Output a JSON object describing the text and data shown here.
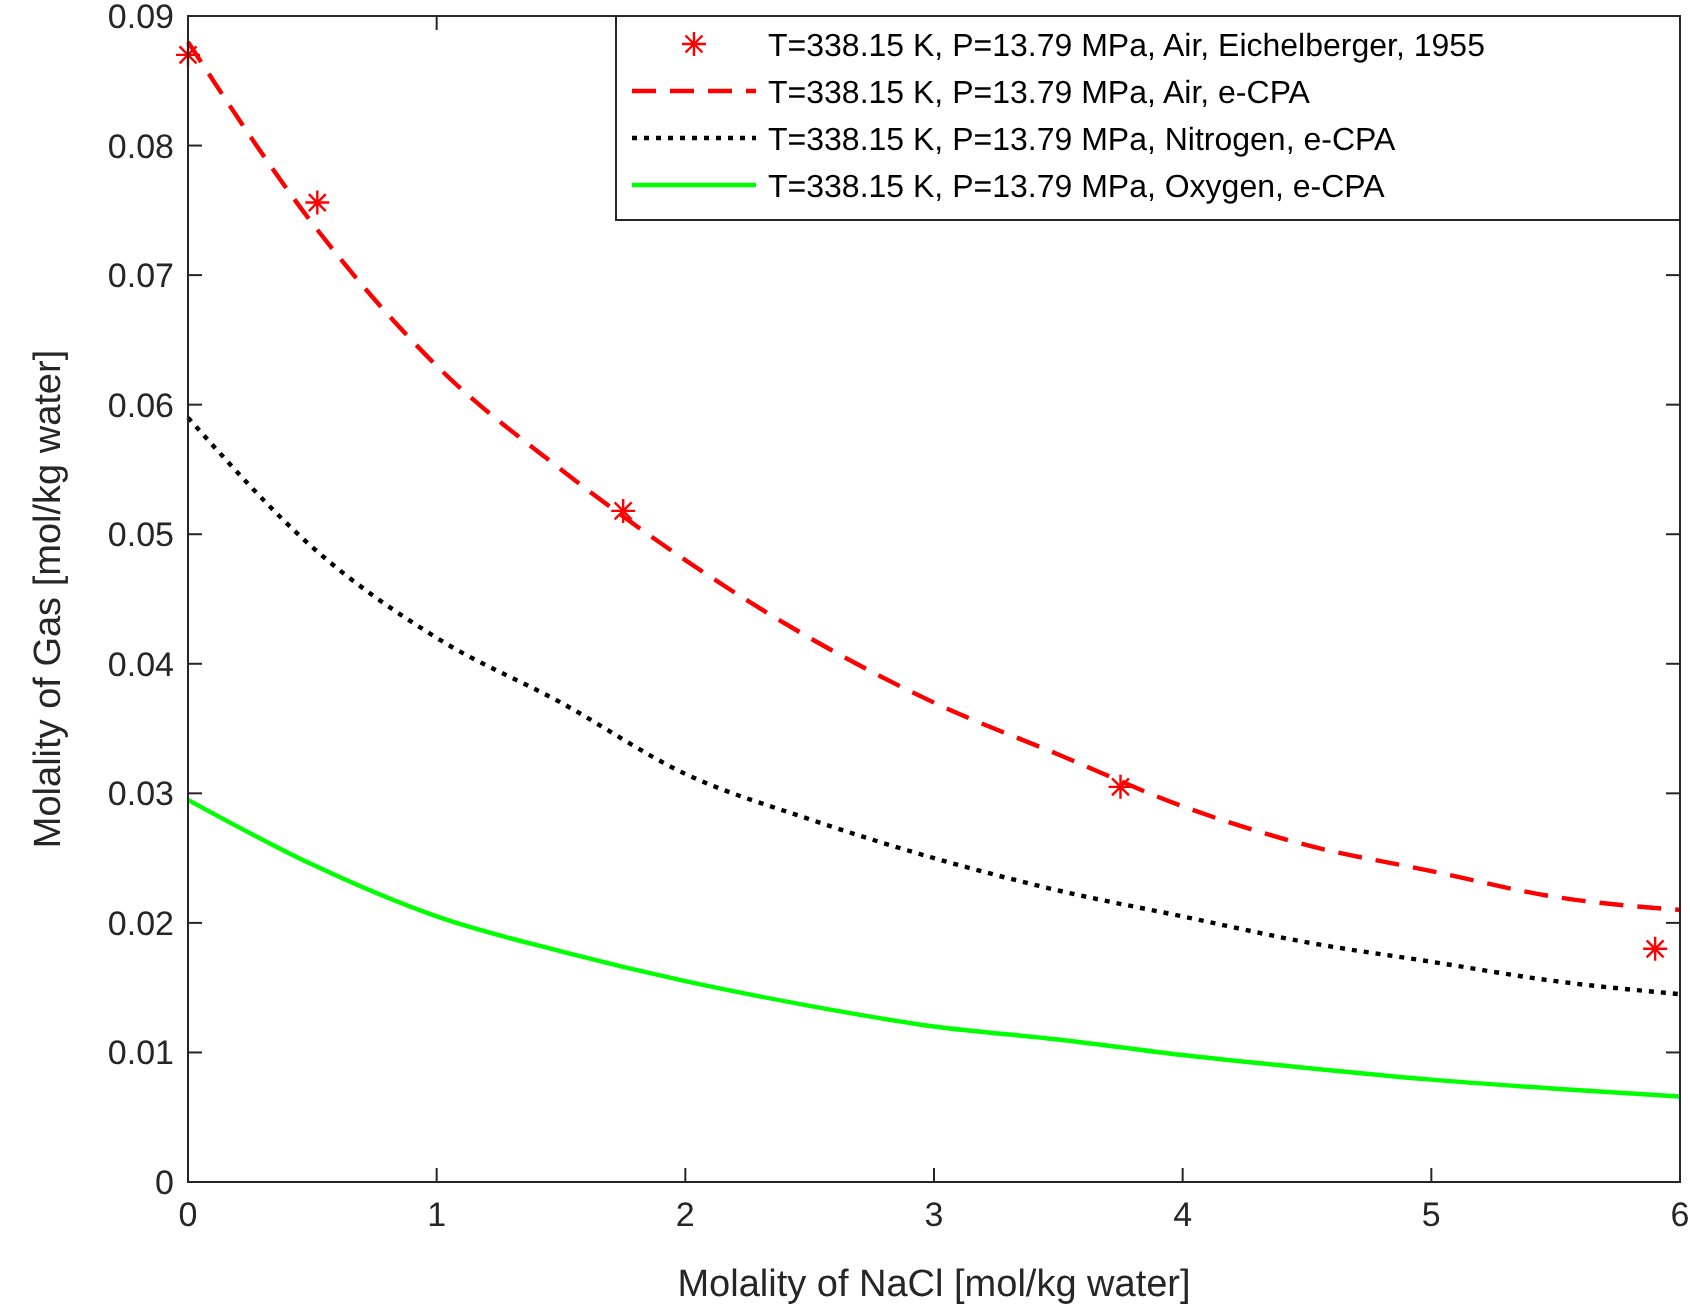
{
  "chart_data": {
    "type": "line",
    "xlabel": "Molality of NaCl [mol/kg water]",
    "ylabel": "Molality of Gas [mol/kg water]",
    "xlim": [
      0,
      6
    ],
    "xticks": [
      0,
      1,
      2,
      3,
      4,
      5,
      6
    ],
    "ylim": [
      0,
      0.09
    ],
    "yticks": [
      0,
      0.01,
      0.02,
      0.03,
      0.04,
      0.05,
      0.06,
      0.07,
      0.08,
      0.09
    ],
    "grid": false,
    "legend": "top right",
    "series": [
      {
        "name": "T=338.15 K, P=13.79 MPa, Air, Eichelberger, 1955",
        "type": "scatter",
        "marker": "cross",
        "color": "#ff0000",
        "x": [
          0,
          0.52,
          1.75,
          3.75,
          5.9
        ],
        "values": [
          0.087,
          0.0756,
          0.0518,
          0.0305,
          0.018
        ]
      },
      {
        "name": "T=338.15 K, P=13.79 MPa, Air, e-CPA",
        "line_style": "dashed",
        "color": "#ff0000",
        "x": [
          0,
          0.5,
          1,
          1.5,
          2,
          2.5,
          3,
          3.5,
          4,
          4.5,
          5,
          5.5,
          6
        ],
        "values": [
          0.088,
          0.074,
          0.063,
          0.055,
          0.048,
          0.042,
          0.037,
          0.033,
          0.029,
          0.026,
          0.024,
          0.022,
          0.021
        ]
      },
      {
        "name": "T=338.15 K, P=13.79 MPa, Nitrogen, e-CPA",
        "line_style": "dotted",
        "color": "#000000",
        "x": [
          0,
          0.5,
          1,
          1.5,
          2,
          2.5,
          3,
          3.5,
          4,
          4.5,
          5,
          5.5,
          6
        ],
        "values": [
          0.059,
          0.049,
          0.042,
          0.037,
          0.0315,
          0.028,
          0.025,
          0.0225,
          0.0205,
          0.0185,
          0.017,
          0.0155,
          0.0145
        ]
      },
      {
        "name": "T=338.15 K, P=13.79 MPa, Oxygen, e-CPA",
        "line_style": "solid",
        "color": "#00ff00",
        "x": [
          0,
          0.5,
          1,
          1.5,
          2,
          2.5,
          3,
          3.5,
          4,
          4.5,
          5,
          5.5,
          6
        ],
        "values": [
          0.0295,
          0.0245,
          0.0205,
          0.0178,
          0.0155,
          0.0136,
          0.012,
          0.011,
          0.0098,
          0.0088,
          0.0079,
          0.0072,
          0.0066
        ]
      }
    ]
  }
}
